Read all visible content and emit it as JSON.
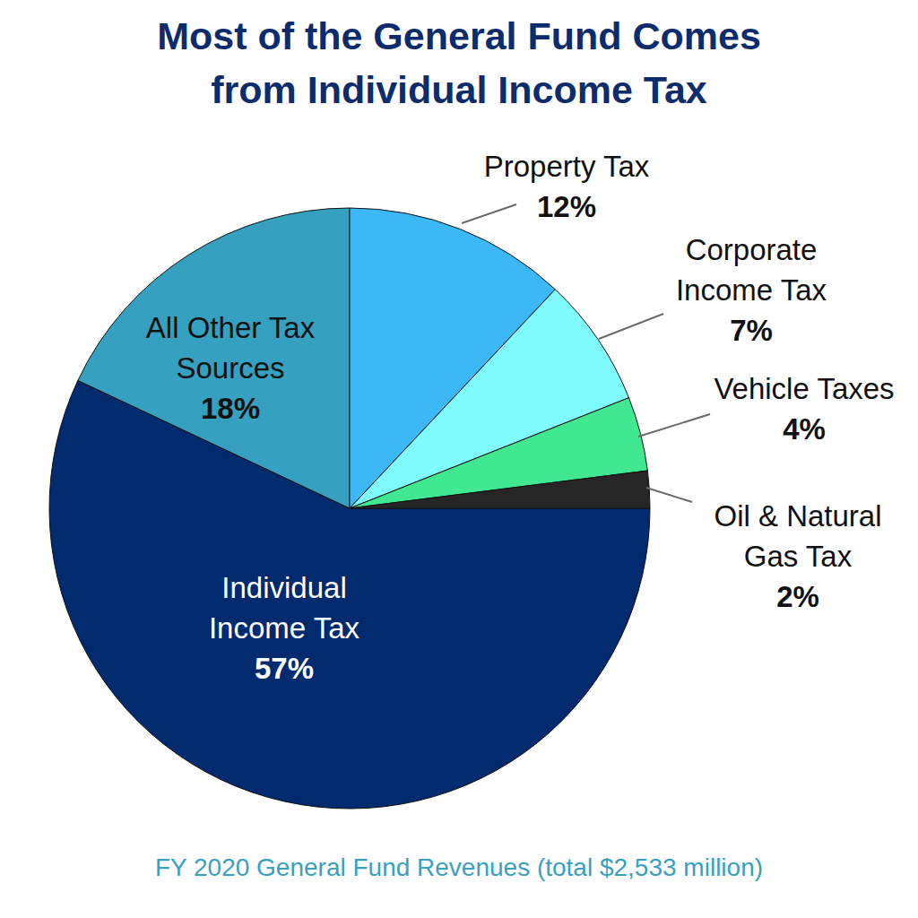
{
  "chart_data": {
    "type": "pie",
    "title": "Most of the General Fund Comes from Individual Income Tax",
    "subtitle": "FY 2020 General Fund Revenues (total $2,533 million)",
    "categories": [
      "Individual Income Tax",
      "All Other Tax Sources",
      "Property Tax",
      "Corporate Income Tax",
      "Vehicle Taxes",
      "Oil & Natural Gas Tax"
    ],
    "values": [
      57,
      18,
      12,
      7,
      4,
      2
    ],
    "value_labels": [
      "57%",
      "18%",
      "12%",
      "7%",
      "4%",
      "2%"
    ],
    "colors": [
      "#022a6f",
      "#35a0bf",
      "#3cb8f6",
      "#80fcff",
      "#3fe891",
      "#262626"
    ],
    "data_labels": true
  }
}
